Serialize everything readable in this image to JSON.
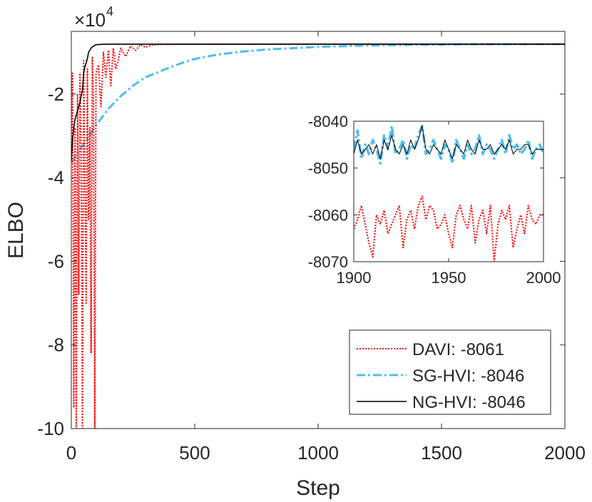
{
  "chart_data": {
    "type": "line",
    "main": {
      "xlabel": "Step",
      "ylabel": "ELBO",
      "xlim": [
        0,
        2000
      ],
      "ylim": [
        -10,
        -0.5
      ],
      "y_scale_label": "×10",
      "y_scale_exponent": "4",
      "x_ticks": [
        0,
        500,
        1000,
        1500,
        2000
      ],
      "x_tick_labels": [
        "0",
        "500",
        "1000",
        "1500",
        "2000"
      ],
      "y_ticks": [
        -2,
        -4,
        -6,
        -8,
        -10
      ],
      "y_tick_labels": [
        "-2",
        "-4",
        "-6",
        "-8",
        "-10"
      ],
      "series": [
        {
          "name": "DAVI",
          "final": "-8061",
          "color": "#ff0000",
          "style": "dotted",
          "x": [
            0,
            5,
            10,
            15,
            20,
            25,
            30,
            35,
            40,
            45,
            50,
            55,
            60,
            65,
            70,
            75,
            80,
            85,
            90,
            95,
            100,
            110,
            120,
            130,
            140,
            150,
            160,
            170,
            180,
            190,
            200,
            220,
            240,
            260,
            280,
            300,
            330,
            360,
            400,
            450,
            500,
            700,
            1000,
            1500,
            2000
          ],
          "y": [
            -3.5,
            -1.5,
            -9.5,
            -2.8,
            -10,
            -2,
            -6.8,
            -1.5,
            -3.2,
            -10,
            -1.2,
            -4,
            -7,
            -1.4,
            -5,
            -2.8,
            -8.2,
            -1.1,
            -2.2,
            -10,
            -1.5,
            -1.3,
            -2.3,
            -1.0,
            -1.6,
            -0.95,
            -1.8,
            -0.9,
            -1.4,
            -1.2,
            -0.9,
            -1.1,
            -0.85,
            -0.95,
            -0.82,
            -0.88,
            -0.82,
            -0.81,
            -0.81,
            -0.806,
            -0.806,
            -0.806,
            -0.806,
            -0.806,
            -0.806
          ]
        },
        {
          "name": "SG-HVI",
          "final": "-8046",
          "color": "#4dbeee",
          "style": "dashdot",
          "x": [
            0,
            20,
            50,
            100,
            150,
            200,
            250,
            300,
            350,
            400,
            450,
            500,
            550,
            600,
            700,
            800,
            900,
            1000,
            1200,
            1400,
            1600,
            1800,
            2000
          ],
          "y": [
            -3.65,
            -3.45,
            -3.2,
            -2.75,
            -2.35,
            -2.05,
            -1.8,
            -1.6,
            -1.48,
            -1.36,
            -1.25,
            -1.16,
            -1.1,
            -1.05,
            -0.98,
            -0.93,
            -0.9,
            -0.87,
            -0.84,
            -0.82,
            -0.81,
            -0.806,
            -0.8046
          ]
        },
        {
          "name": "NG-HVI",
          "final": "-8046",
          "color": "#000000",
          "style": "solid",
          "x": [
            0,
            5,
            10,
            15,
            20,
            25,
            30,
            35,
            40,
            45,
            50,
            55,
            60,
            65,
            70,
            75,
            80,
            90,
            100,
            120,
            150,
            200,
            300,
            500,
            1000,
            2000
          ],
          "y": [
            -3.6,
            -3.1,
            -2.8,
            -2.6,
            -2.5,
            -2.4,
            -2.3,
            -2.2,
            -2.05,
            -1.9,
            -1.5,
            -1.35,
            -1.25,
            -1.15,
            -1.0,
            -0.95,
            -0.9,
            -0.85,
            -0.82,
            -0.81,
            -0.805,
            -0.8046,
            -0.8046,
            -0.8046,
            -0.8046,
            -0.8046
          ]
        }
      ],
      "legend": {
        "position": "bottom-right",
        "entries": [
          "DAVI: -8061",
          "SG-HVI: -8046",
          "NG-HVI: -8046"
        ]
      }
    },
    "inset": {
      "xlim": [
        1900,
        2000
      ],
      "ylim": [
        -8070,
        -8040
      ],
      "x_ticks": [
        1900,
        1950,
        2000
      ],
      "x_tick_labels": [
        "1900",
        "1950",
        "2000"
      ],
      "y_ticks": [
        -8040,
        -8050,
        -8060,
        -8070
      ],
      "y_tick_labels": [
        "-8040",
        "-8050",
        "-8060",
        "-8070"
      ],
      "series": [
        {
          "name": "DAVI",
          "color": "#ff0000",
          "style": "dotted",
          "x": [
            1900,
            1902,
            1904,
            1906,
            1908,
            1910,
            1912,
            1914,
            1916,
            1918,
            1920,
            1922,
            1924,
            1926,
            1928,
            1930,
            1932,
            1934,
            1936,
            1938,
            1940,
            1942,
            1944,
            1946,
            1948,
            1950,
            1952,
            1954,
            1956,
            1958,
            1960,
            1962,
            1964,
            1966,
            1968,
            1970,
            1972,
            1974,
            1976,
            1978,
            1980,
            1982,
            1984,
            1986,
            1988,
            1990,
            1992,
            1994,
            1996,
            1998,
            2000
          ],
          "y": [
            -8063,
            -8061,
            -8058,
            -8062,
            -8066,
            -8069,
            -8060,
            -8062,
            -8059,
            -8064,
            -8062,
            -8060,
            -8058,
            -8067,
            -8061,
            -8059,
            -8063,
            -8058,
            -8056,
            -8061,
            -8058,
            -8059,
            -8063,
            -8062,
            -8060,
            -8064,
            -8067,
            -8060,
            -8058,
            -8061,
            -8063,
            -8058,
            -8066,
            -8061,
            -8059,
            -8064,
            -8058,
            -8070,
            -8062,
            -8059,
            -8061,
            -8058,
            -8067,
            -8063,
            -8060,
            -8064,
            -8058,
            -8061,
            -8062,
            -8060,
            -8060
          ]
        },
        {
          "name": "SG-HVI",
          "color": "#4dbeee",
          "style": "dashdot",
          "x": [
            1900,
            1902,
            1904,
            1906,
            1908,
            1910,
            1912,
            1914,
            1916,
            1918,
            1920,
            1922,
            1924,
            1926,
            1928,
            1930,
            1932,
            1934,
            1936,
            1938,
            1940,
            1942,
            1944,
            1946,
            1948,
            1950,
            1952,
            1954,
            1956,
            1958,
            1960,
            1962,
            1964,
            1966,
            1968,
            1970,
            1972,
            1974,
            1976,
            1978,
            1980,
            1982,
            1984,
            1986,
            1988,
            1990,
            1992,
            1994,
            1996,
            1998,
            2000
          ],
          "y": [
            -8046,
            -8042,
            -8048,
            -8045,
            -8047,
            -8044,
            -8046,
            -8049,
            -8043,
            -8046,
            -8041,
            -8047,
            -8046,
            -8044,
            -8048,
            -8045,
            -8046,
            -8043,
            -8041,
            -8047,
            -8046,
            -8044,
            -8046,
            -8048,
            -8045,
            -8046,
            -8049,
            -8044,
            -8046,
            -8048,
            -8045,
            -8047,
            -8046,
            -8043,
            -8047,
            -8045,
            -8046,
            -8048,
            -8046,
            -8044,
            -8047,
            -8043,
            -8046,
            -8045,
            -8047,
            -8046,
            -8044,
            -8048,
            -8046,
            -8045,
            -8047
          ]
        },
        {
          "name": "NG-HVI",
          "color": "#000000",
          "style": "solid",
          "x": [
            1900,
            1902,
            1904,
            1906,
            1908,
            1910,
            1912,
            1914,
            1916,
            1918,
            1920,
            1922,
            1924,
            1926,
            1928,
            1930,
            1932,
            1934,
            1936,
            1938,
            1940,
            1942,
            1944,
            1946,
            1948,
            1950,
            1952,
            1954,
            1956,
            1958,
            1960,
            1962,
            1964,
            1966,
            1968,
            1970,
            1972,
            1974,
            1976,
            1978,
            1980,
            1982,
            1984,
            1986,
            1988,
            1990,
            1992,
            1994,
            1996,
            1998,
            2000
          ],
          "y": [
            -8047,
            -8044,
            -8047,
            -8046,
            -8045,
            -8047,
            -8045,
            -8048,
            -8044,
            -8046,
            -8043,
            -8046,
            -8047,
            -8045,
            -8047,
            -8044,
            -8046,
            -8044,
            -8041,
            -8046,
            -8047,
            -8045,
            -8046,
            -8047,
            -8044,
            -8046,
            -8048,
            -8045,
            -8046,
            -8047,
            -8044,
            -8046,
            -8047,
            -8044,
            -8046,
            -8046,
            -8045,
            -8047,
            -8046,
            -8045,
            -8046,
            -8044,
            -8047,
            -8046,
            -8046,
            -8045,
            -8045,
            -8047,
            -8046,
            -8046,
            -8046
          ]
        }
      ]
    }
  }
}
